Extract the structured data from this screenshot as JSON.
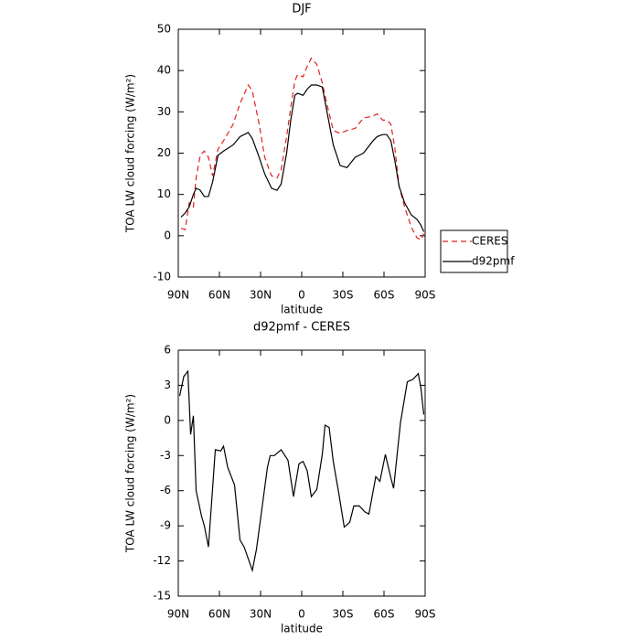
{
  "chart_data": [
    {
      "type": "line",
      "title": "DJF",
      "xlabel": "latitude",
      "ylabel": "TOA LW cloud forcing (W/m²)",
      "xlim": [
        90,
        -90
      ],
      "ylim": [
        -10,
        50
      ],
      "xticks": [
        {
          "value": 90,
          "label": "90N"
        },
        {
          "value": 60,
          "label": "60N"
        },
        {
          "value": 30,
          "label": "30N"
        },
        0,
        {
          "value": -30,
          "label": "30S"
        },
        {
          "value": -60,
          "label": "60S"
        },
        {
          "value": -90,
          "label": "90S"
        }
      ],
      "yticks": [
        -10,
        0,
        10,
        20,
        30,
        40,
        50
      ],
      "legend": "right",
      "x": [
        88,
        85,
        82,
        79,
        77,
        74,
        71,
        68,
        65,
        61,
        57,
        50,
        45,
        39,
        36,
        31,
        27,
        22,
        18,
        15,
        11,
        8,
        5,
        3,
        -1,
        -4,
        -7,
        -11,
        -15,
        -19,
        -23,
        -28,
        -33,
        -39,
        -45,
        -52,
        -55,
        -59,
        -62,
        -65,
        -68,
        -71,
        -75,
        -80,
        -84,
        -87,
        -89
      ],
      "series": [
        {
          "name": "CERES",
          "color": "#e02020",
          "linestyle": "dashed",
          "values": [
            1.8,
            1.5,
            8,
            7,
            14,
            19.5,
            20.5,
            19,
            14.5,
            21,
            23,
            27,
            32,
            36.5,
            35,
            27,
            19,
            14.5,
            14,
            16,
            24,
            31,
            37.5,
            39,
            38.5,
            41,
            43,
            41.5,
            37,
            31,
            25.5,
            24.8,
            25.5,
            26,
            28.5,
            29,
            29.5,
            28,
            28,
            27,
            21,
            12,
            7,
            2,
            -0.5,
            -1,
            0.5
          ]
        },
        {
          "name": "d92pmf",
          "color": "#000000",
          "linestyle": "solid",
          "values": [
            4.5,
            5.5,
            7,
            10,
            11.5,
            11,
            9.5,
            9.5,
            13,
            19.5,
            20.5,
            22,
            24,
            25,
            23.5,
            19,
            15,
            11.5,
            11,
            12.5,
            20,
            28,
            34,
            34.5,
            34,
            35.5,
            36.5,
            36.5,
            36,
            29,
            22,
            17,
            16.5,
            19,
            20,
            23,
            24,
            24.5,
            24.5,
            23,
            18,
            12,
            8,
            5,
            4,
            2.5,
            1
          ]
        }
      ]
    },
    {
      "type": "line",
      "title": "d92pmf - CERES",
      "xlabel": "latitude",
      "ylabel": "TOA LW cloud forcing (W/m²)",
      "xlim": [
        90,
        -90
      ],
      "ylim": [
        -15,
        6
      ],
      "xticks": [
        {
          "value": 90,
          "label": "90N"
        },
        {
          "value": 60,
          "label": "60N"
        },
        {
          "value": 30,
          "label": "30N"
        },
        0,
        {
          "value": -30,
          "label": "30S"
        },
        {
          "value": -60,
          "label": "60S"
        },
        {
          "value": -90,
          "label": "90S"
        }
      ],
      "yticks": [
        -15,
        -12,
        -9,
        -6,
        -3,
        0,
        3,
        6
      ],
      "color": "#000000",
      "x": [
        89,
        86,
        83,
        81,
        79,
        77,
        73,
        71,
        68,
        63,
        59,
        57,
        54,
        49,
        45,
        42,
        36,
        33,
        30,
        25,
        23,
        20,
        15,
        10,
        6,
        2,
        -1,
        -4,
        -7,
        -11,
        -15,
        -17,
        -20,
        -23,
        -27,
        -31,
        -35,
        -38,
        -42,
        -46,
        -49,
        -54,
        -57,
        -61,
        -65,
        -67,
        -72,
        -75,
        -77,
        -81,
        -85,
        -87,
        -89
      ],
      "values": [
        2.1,
        3.75,
        4.2,
        -1.2,
        0.4,
        -6,
        -8.2,
        -9,
        -10.8,
        -2.5,
        -2.6,
        -2.2,
        -4,
        -5.5,
        -10.2,
        -10.8,
        -12.8,
        -11,
        -8.4,
        -4,
        -3,
        -3,
        -2.5,
        -3.4,
        -6.5,
        -3.7,
        -3.5,
        -4.3,
        -6.5,
        -5.9,
        -2.9,
        -0.4,
        -0.6,
        -3.5,
        -6.2,
        -9.1,
        -8.7,
        -7.3,
        -7.3,
        -7.8,
        -8,
        -4.8,
        -5.2,
        -2.9,
        -4.9,
        -5.8,
        -0.2,
        1.9,
        3.3,
        3.5,
        4,
        2.7,
        0.5
      ]
    }
  ]
}
